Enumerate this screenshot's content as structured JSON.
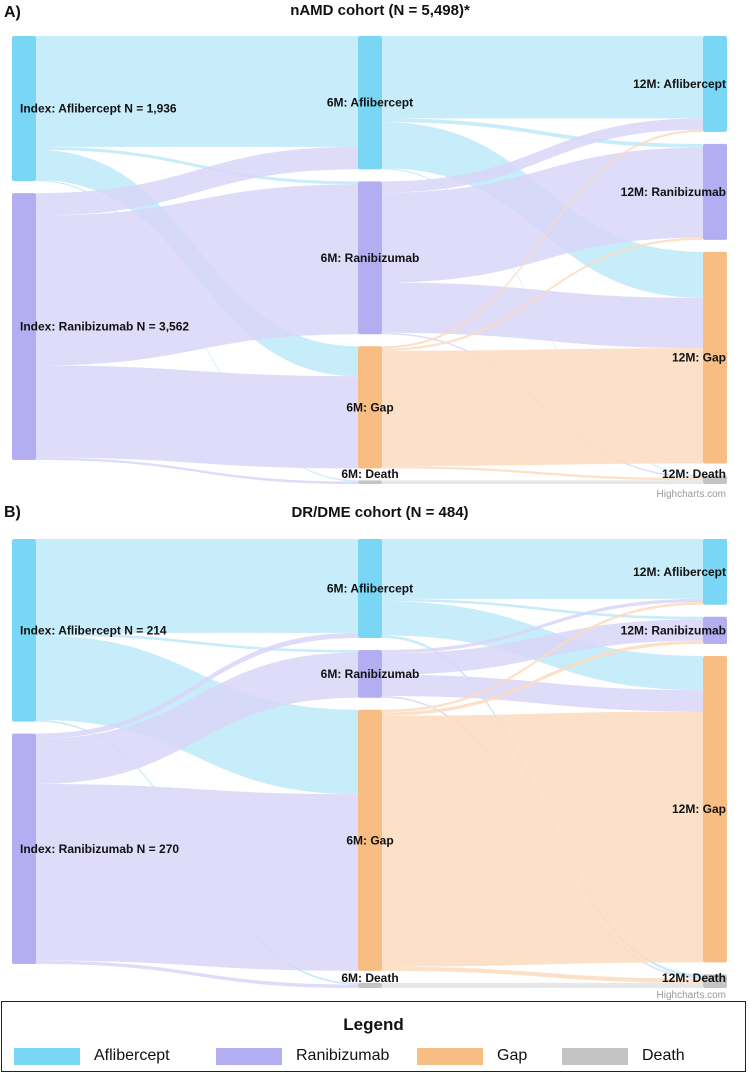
{
  "chart_data": [
    {
      "type": "sankey",
      "panel_letter": "A)",
      "title": "nAMD cohort (N = 5,498)*",
      "credit": "Highcharts.com",
      "columns": [
        "Index",
        "6M",
        "12M"
      ],
      "nodes": [
        {
          "id": "idx_afl",
          "label": "Index: Aflibercept  N = 1,936",
          "category": "afl",
          "column": 0,
          "value": 1936
        },
        {
          "id": "idx_ran",
          "label": "Index: Ranibizumab  N = 3,562",
          "category": "ran",
          "column": 0,
          "value": 3562
        },
        {
          "id": "m6_afl",
          "label": "6M: Aflibercept",
          "category": "afl",
          "column": 1
        },
        {
          "id": "m6_ran",
          "label": "6M: Ranibizumab",
          "category": "ran",
          "column": 1
        },
        {
          "id": "m6_gap",
          "label": "6M: Gap",
          "category": "gap",
          "column": 1
        },
        {
          "id": "m6_death",
          "label": "6M: Death",
          "category": "death",
          "column": 1
        },
        {
          "id": "m12_afl",
          "label": "12M: Aflibercept",
          "category": "afl",
          "column": 2
        },
        {
          "id": "m12_ran",
          "label": "12M: Ranibizumab",
          "category": "ran",
          "column": 2
        },
        {
          "id": "m12_gap",
          "label": "12M: Gap",
          "category": "gap",
          "column": 2
        },
        {
          "id": "m12_death",
          "label": "12M: Death",
          "category": "death",
          "column": 2
        }
      ],
      "links": [
        {
          "from": "idx_afl",
          "to": "m6_afl",
          "value": 1480
        },
        {
          "from": "idx_afl",
          "to": "m6_ran",
          "value": 40
        },
        {
          "from": "idx_afl",
          "to": "m6_gap",
          "value": 400
        },
        {
          "from": "idx_afl",
          "to": "m6_death",
          "value": 16
        },
        {
          "from": "idx_ran",
          "to": "m6_afl",
          "value": 300
        },
        {
          "from": "idx_ran",
          "to": "m6_ran",
          "value": 2000
        },
        {
          "from": "idx_ran",
          "to": "m6_gap",
          "value": 1230
        },
        {
          "from": "idx_ran",
          "to": "m6_death",
          "value": 32
        },
        {
          "from": "m6_afl",
          "to": "m12_afl",
          "value": 1100
        },
        {
          "from": "m6_afl",
          "to": "m12_ran",
          "value": 50
        },
        {
          "from": "m6_afl",
          "to": "m12_gap",
          "value": 615
        },
        {
          "from": "m6_afl",
          "to": "m12_death",
          "value": 15
        },
        {
          "from": "m6_ran",
          "to": "m12_afl",
          "value": 150
        },
        {
          "from": "m6_ran",
          "to": "m12_ran",
          "value": 1200
        },
        {
          "from": "m6_ran",
          "to": "m12_gap",
          "value": 670
        },
        {
          "from": "m6_ran",
          "to": "m12_death",
          "value": 20
        },
        {
          "from": "m6_gap",
          "to": "m12_afl",
          "value": 30
        },
        {
          "from": "m6_gap",
          "to": "m12_ran",
          "value": 30
        },
        {
          "from": "m6_gap",
          "to": "m12_gap",
          "value": 1540
        },
        {
          "from": "m6_gap",
          "to": "m12_death",
          "value": 30
        },
        {
          "from": "m6_death",
          "to": "m12_death",
          "value": 48
        }
      ]
    },
    {
      "type": "sankey",
      "panel_letter": "B)",
      "title": "DR/DME cohort (N = 484)",
      "credit": "Highcharts.com",
      "columns": [
        "Index",
        "6M",
        "12M"
      ],
      "nodes": [
        {
          "id": "idx_afl",
          "label": "Index: Aflibercept  N = 214",
          "category": "afl",
          "column": 0,
          "value": 214
        },
        {
          "id": "idx_ran",
          "label": "Index: Ranibizumab  N = 270",
          "category": "ran",
          "column": 0,
          "value": 270
        },
        {
          "id": "m6_afl",
          "label": "6M: Aflibercept",
          "category": "afl",
          "column": 1
        },
        {
          "id": "m6_ran",
          "label": "6M: Ranibizumab",
          "category": "ran",
          "column": 1
        },
        {
          "id": "m6_gap",
          "label": "6M: Gap",
          "category": "gap",
          "column": 1
        },
        {
          "id": "m6_death",
          "label": "6M: Death",
          "category": "death",
          "column": 1
        },
        {
          "id": "m12_afl",
          "label": "12M: Aflibercept",
          "category": "afl",
          "column": 2
        },
        {
          "id": "m12_ran",
          "label": "12M: Ranibizumab",
          "category": "ran",
          "column": 2
        },
        {
          "id": "m12_gap",
          "label": "12M: Gap",
          "category": "gap",
          "column": 2
        },
        {
          "id": "m12_death",
          "label": "12M: Death",
          "category": "death",
          "column": 2
        }
      ],
      "links": [
        {
          "from": "idx_afl",
          "to": "m6_afl",
          "value": 110
        },
        {
          "from": "idx_afl",
          "to": "m6_ran",
          "value": 3
        },
        {
          "from": "idx_afl",
          "to": "m6_gap",
          "value": 99
        },
        {
          "from": "idx_afl",
          "to": "m6_death",
          "value": 2
        },
        {
          "from": "idx_ran",
          "to": "m6_afl",
          "value": 6
        },
        {
          "from": "idx_ran",
          "to": "m6_ran",
          "value": 53
        },
        {
          "from": "idx_ran",
          "to": "m6_gap",
          "value": 207
        },
        {
          "from": "idx_ran",
          "to": "m6_death",
          "value": 4
        },
        {
          "from": "m6_afl",
          "to": "m12_afl",
          "value": 70
        },
        {
          "from": "m6_afl",
          "to": "m12_ran",
          "value": 3
        },
        {
          "from": "m6_afl",
          "to": "m12_gap",
          "value": 40
        },
        {
          "from": "m6_afl",
          "to": "m12_death",
          "value": 3
        },
        {
          "from": "m6_ran",
          "to": "m12_afl",
          "value": 4
        },
        {
          "from": "m6_ran",
          "to": "m12_ran",
          "value": 25
        },
        {
          "from": "m6_ran",
          "to": "m12_gap",
          "value": 25
        },
        {
          "from": "m6_ran",
          "to": "m12_death",
          "value": 2
        },
        {
          "from": "m6_gap",
          "to": "m12_afl",
          "value": 3
        },
        {
          "from": "m6_gap",
          "to": "m12_ran",
          "value": 4
        },
        {
          "from": "m6_gap",
          "to": "m12_gap",
          "value": 294
        },
        {
          "from": "m6_gap",
          "to": "m12_death",
          "value": 5
        },
        {
          "from": "m6_death",
          "to": "m12_death",
          "value": 6
        }
      ]
    }
  ],
  "colors": {
    "afl": "#7ad6f5",
    "ran": "#b3aef2",
    "gap": "#f7bd83",
    "death": "#c4c4c4",
    "afl_link": "#bde9f9",
    "ran_link": "#d9d6f8",
    "gap_link": "#fbdcbe",
    "death_link": "#e3e3e3"
  },
  "legend": {
    "title": "Legend",
    "items": [
      {
        "label": "Aflibercept",
        "category": "afl"
      },
      {
        "label": "Ranibizumab",
        "category": "ran"
      },
      {
        "label": "Gap",
        "category": "gap"
      },
      {
        "label": "Death",
        "category": "death"
      }
    ]
  }
}
